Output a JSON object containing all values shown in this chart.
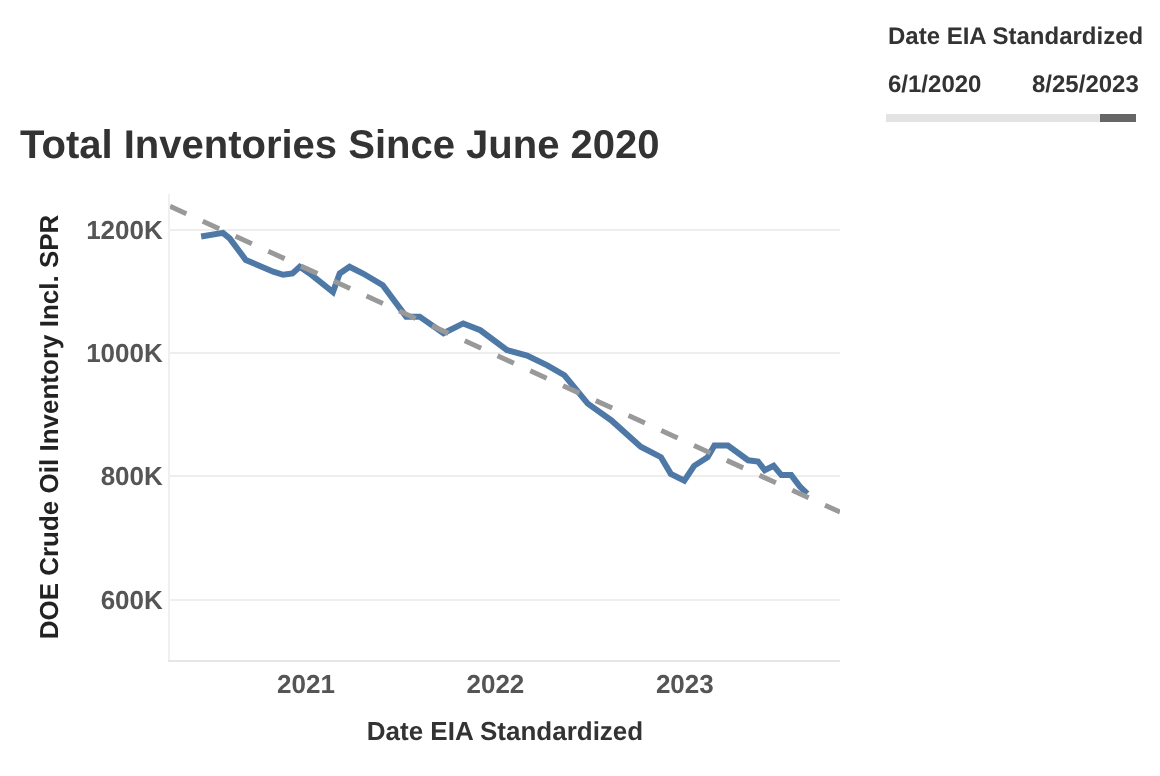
{
  "chart_data": {
    "type": "line",
    "title": "Total Inventories Since June 2020",
    "xlabel": "Date EIA Standardized",
    "ylabel": "DOE Crude Oil Inventory Incl. SPR",
    "annotations": [
      "Date EIA Standardized",
      "6/1/2020",
      "8/25/2023"
    ],
    "xlim": [
      "2020-04-14",
      "2023-10-27"
    ],
    "xticks": [
      {
        "value": "2021-01-01",
        "label": "2021"
      },
      {
        "value": "2022-01-01",
        "label": "2022"
      },
      {
        "value": "2023-01-01",
        "label": "2023"
      }
    ],
    "ylim": [
      502,
      1258
    ],
    "yticks": [
      {
        "value": 600,
        "label": "600K"
      },
      {
        "value": 800,
        "label": "800K"
      },
      {
        "value": 1000,
        "label": "1000K"
      },
      {
        "value": 1200,
        "label": "1200K"
      }
    ],
    "grid": "y",
    "line_style": "solid",
    "marker": "none",
    "series": [
      {
        "color": "#4e79a7",
        "x": [
          "2020-06-13",
          "2020-07-25",
          "2020-08-07",
          "2020-09-07",
          "2020-10-30",
          "2020-11-18",
          "2020-12-06",
          "2020-12-20",
          "2021-01-08",
          "2021-02-22",
          "2021-03-07",
          "2021-03-26",
          "2021-04-21",
          "2021-05-29",
          "2021-07-13",
          "2021-08-08",
          "2021-09-23",
          "2021-10-31",
          "2021-12-03",
          "2022-01-23",
          "2022-03-03",
          "2022-04-11",
          "2022-05-14",
          "2022-06-28",
          "2022-08-12",
          "2022-10-08",
          "2022-11-16",
          "2022-12-05",
          "2022-12-31",
          "2023-01-19",
          "2023-02-14",
          "2023-02-27",
          "2023-03-25",
          "2023-05-03",
          "2023-05-22",
          "2023-06-04",
          "2023-06-21",
          "2023-07-06",
          "2023-07-25",
          "2023-08-11",
          "2023-08-25"
        ],
        "values": [
          1189,
          1195,
          1186,
          1151,
          1132,
          1127,
          1129,
          1140,
          1129,
          1099,
          1129,
          1140,
          1129,
          1110,
          1059,
          1059,
          1032,
          1048,
          1037,
          1005,
          996,
          980,
          964,
          918,
          891,
          848,
          831,
          804,
          793,
          817,
          831,
          850,
          850,
          826,
          824,
          810,
          817,
          802,
          802,
          783,
          772
        ]
      },
      {
        "type": "line",
        "line_style": "dashed",
        "color": "#999999",
        "x": [
          "2020-04-14",
          "2023-10-27"
        ],
        "values": [
          1238,
          742
        ]
      }
    ]
  }
}
